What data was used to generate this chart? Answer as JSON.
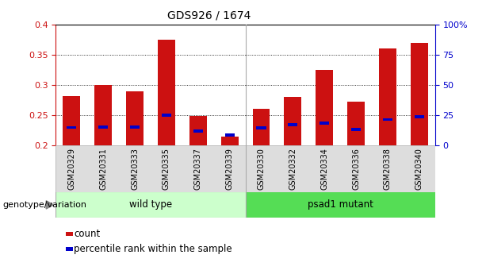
{
  "title": "GDS926 / 1674",
  "categories": [
    "GSM20329",
    "GSM20331",
    "GSM20333",
    "GSM20335",
    "GSM20337",
    "GSM20339",
    "GSM20330",
    "GSM20332",
    "GSM20334",
    "GSM20336",
    "GSM20338",
    "GSM20340"
  ],
  "bar_tops": [
    0.282,
    0.3,
    0.29,
    0.375,
    0.248,
    0.214,
    0.26,
    0.28,
    0.325,
    0.272,
    0.36,
    0.37
  ],
  "bar_bottoms": [
    0.2,
    0.2,
    0.2,
    0.2,
    0.2,
    0.2,
    0.2,
    0.2,
    0.2,
    0.2,
    0.2,
    0.2
  ],
  "percentile_values": [
    0.227,
    0.228,
    0.228,
    0.247,
    0.221,
    0.214,
    0.226,
    0.232,
    0.234,
    0.224,
    0.24,
    0.245
  ],
  "percentile_heights": [
    0.005,
    0.005,
    0.005,
    0.005,
    0.005,
    0.005,
    0.005,
    0.005,
    0.005,
    0.005,
    0.005,
    0.005
  ],
  "ylim": [
    0.2,
    0.4
  ],
  "yticks_left": [
    0.2,
    0.25,
    0.3,
    0.35,
    0.4
  ],
  "ytick_labels_left": [
    "0.2",
    "0.25",
    "0.3",
    "0.35",
    "0.4"
  ],
  "yticks_right_vals": [
    0,
    25,
    50,
    75,
    100
  ],
  "ytick_labels_right": [
    "0",
    "25",
    "50",
    "75",
    "100%"
  ],
  "bar_color": "#cc1111",
  "percentile_color": "#0000cc",
  "wildtype_label": "wild type",
  "mutant_label": "psad1 mutant",
  "wildtype_color": "#ccffcc",
  "mutant_color": "#55dd55",
  "group_label": "genotype/variation",
  "legend_count_label": "count",
  "legend_percentile_label": "percentile rank within the sample",
  "bg_color": "#ffffff",
  "tick_label_color_left": "#cc1111",
  "tick_label_color_right": "#0000cc",
  "bar_width": 0.55,
  "figsize": [
    6.13,
    3.45
  ],
  "dpi": 100
}
